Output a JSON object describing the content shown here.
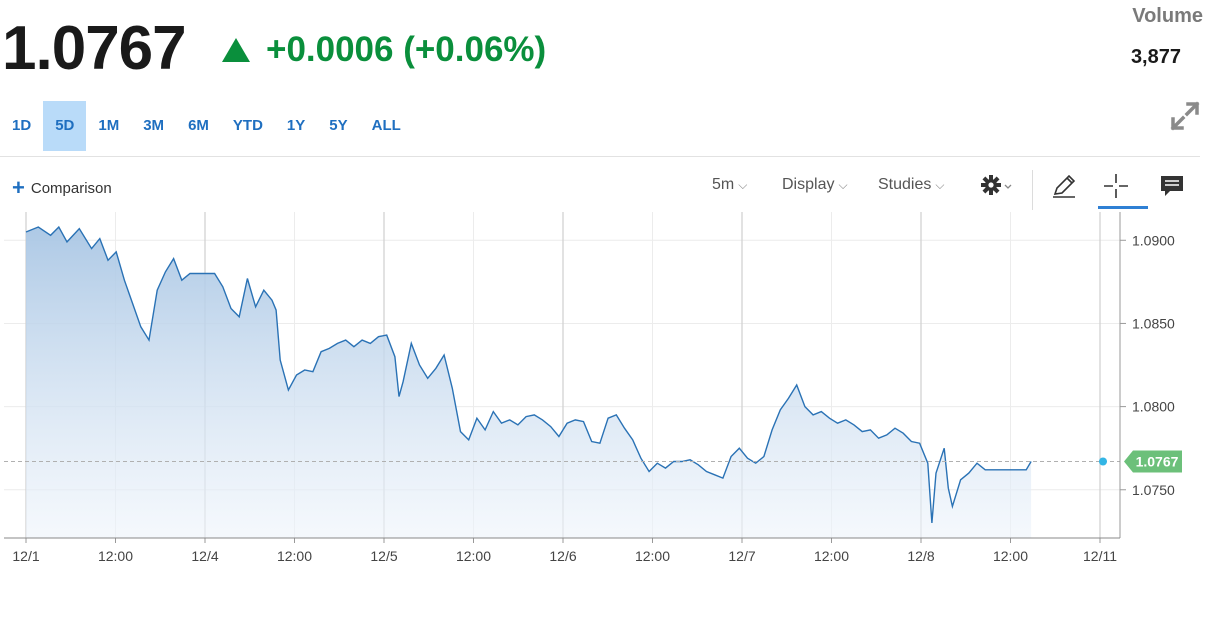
{
  "header": {
    "price": "1.0767",
    "change": "+0.0006 (+0.06%)",
    "volume_label": "Volume",
    "volume_value": "3,877"
  },
  "ranges": [
    "1D",
    "5D",
    "1M",
    "3M",
    "6M",
    "YTD",
    "1Y",
    "5Y",
    "ALL"
  ],
  "active_range": "5D",
  "toolbar": {
    "comparison_label": "Comparison",
    "interval_label": "5m",
    "display_label": "Display",
    "studies_label": "Studies"
  },
  "colors": {
    "accent": "#1f6fc0",
    "positive": "#0a8f3c",
    "line": "#2a72b5",
    "last_price_badge": "#6cc07a",
    "last_price_dot": "#33b5e5"
  },
  "chart_data": {
    "type": "area",
    "y_ticks": [
      "1.0900",
      "1.0850",
      "1.0800",
      "1.0750"
    ],
    "x_ticks": [
      "12/1",
      "12:00",
      "12/4",
      "12:00",
      "12/5",
      "12:00",
      "12/6",
      "12:00",
      "12/7",
      "12:00",
      "12/8",
      "12:00",
      "12/11"
    ],
    "ylim": [
      1.0721,
      1.0917
    ],
    "last_value": 1.0767,
    "last_label": "1.0767",
    "grid": true,
    "points": [
      [
        0,
        1.0905
      ],
      [
        1.5,
        1.0908
      ],
      [
        3,
        1.0903
      ],
      [
        4,
        1.0908
      ],
      [
        5,
        1.0899
      ],
      [
        6.5,
        1.0907
      ],
      [
        8,
        1.0895
      ],
      [
        9,
        1.0901
      ],
      [
        10,
        1.0888
      ],
      [
        11,
        1.0893
      ],
      [
        12,
        1.0876
      ],
      [
        13,
        1.0862
      ],
      [
        14,
        1.0848
      ],
      [
        15,
        1.084
      ],
      [
        16,
        1.087
      ],
      [
        17,
        1.0881
      ],
      [
        18,
        1.0889
      ],
      [
        19,
        1.0876
      ],
      [
        20,
        1.088
      ],
      [
        21,
        1.088
      ],
      [
        22,
        1.088
      ],
      [
        23,
        1.088
      ],
      [
        24,
        1.0872
      ],
      [
        25,
        1.0859
      ],
      [
        26,
        1.0854
      ],
      [
        27,
        1.0877
      ],
      [
        28,
        1.086
      ],
      [
        29,
        1.087
      ],
      [
        30,
        1.0864
      ],
      [
        30.5,
        1.0858
      ],
      [
        31,
        1.0828
      ],
      [
        32,
        1.081
      ],
      [
        33,
        1.0819
      ],
      [
        34,
        1.0822
      ],
      [
        35,
        1.0821
      ],
      [
        36,
        1.0833
      ],
      [
        37,
        1.0835
      ],
      [
        38,
        1.0838
      ],
      [
        39,
        1.084
      ],
      [
        40,
        1.0836
      ],
      [
        41,
        1.084
      ],
      [
        42,
        1.0838
      ],
      [
        43,
        1.0842
      ],
      [
        44,
        1.0843
      ],
      [
        45,
        1.083
      ],
      [
        45.5,
        1.0806
      ],
      [
        46,
        1.0815
      ],
      [
        47,
        1.0838
      ],
      [
        48,
        1.0825
      ],
      [
        49,
        1.0817
      ],
      [
        50,
        1.0823
      ],
      [
        51,
        1.0831
      ],
      [
        52,
        1.0811
      ],
      [
        53,
        1.0785
      ],
      [
        54,
        1.078
      ],
      [
        55,
        1.0793
      ],
      [
        56,
        1.0786
      ],
      [
        57,
        1.0797
      ],
      [
        58,
        1.079
      ],
      [
        59,
        1.0792
      ],
      [
        60,
        1.0789
      ],
      [
        61,
        1.0794
      ],
      [
        62,
        1.0795
      ],
      [
        63,
        1.0792
      ],
      [
        64,
        1.0788
      ],
      [
        65,
        1.0782
      ],
      [
        66,
        1.079
      ],
      [
        67,
        1.0792
      ],
      [
        68,
        1.0791
      ],
      [
        69,
        1.0779
      ],
      [
        70,
        1.0778
      ],
      [
        71,
        1.0793
      ],
      [
        72,
        1.0795
      ],
      [
        73,
        1.0787
      ],
      [
        74,
        1.078
      ],
      [
        75,
        1.0769
      ],
      [
        76,
        1.0761
      ],
      [
        77,
        1.0766
      ],
      [
        78,
        1.0763
      ],
      [
        79,
        1.0767
      ],
      [
        80,
        1.0767
      ],
      [
        81,
        1.0768
      ],
      [
        82,
        1.0765
      ],
      [
        83,
        1.0761
      ],
      [
        84,
        1.0759
      ],
      [
        85,
        1.0757
      ],
      [
        86,
        1.077
      ],
      [
        87,
        1.0775
      ],
      [
        88,
        1.0769
      ],
      [
        89,
        1.0766
      ],
      [
        90,
        1.077
      ],
      [
        91,
        1.0786
      ],
      [
        92,
        1.0798
      ],
      [
        93,
        1.0805
      ],
      [
        94,
        1.0813
      ],
      [
        95,
        1.08
      ],
      [
        96,
        1.0795
      ],
      [
        97,
        1.0797
      ],
      [
        98,
        1.0793
      ],
      [
        99,
        1.079
      ],
      [
        100,
        1.0792
      ],
      [
        101,
        1.0789
      ],
      [
        102,
        1.0785
      ],
      [
        103,
        1.0786
      ],
      [
        104,
        1.0781
      ],
      [
        105,
        1.0783
      ],
      [
        106,
        1.0787
      ],
      [
        107,
        1.0784
      ],
      [
        108,
        1.0779
      ],
      [
        109,
        1.0778
      ],
      [
        110,
        1.0766
      ],
      [
        110.5,
        1.073
      ],
      [
        111,
        1.076
      ],
      [
        112,
        1.0775
      ],
      [
        112.5,
        1.0751
      ],
      [
        113,
        1.074
      ],
      [
        114,
        1.0756
      ],
      [
        115,
        1.076
      ],
      [
        116,
        1.0766
      ],
      [
        117,
        1.0762
      ],
      [
        118,
        1.0762
      ],
      [
        119,
        1.0762
      ],
      [
        120,
        1.0762
      ],
      [
        121,
        1.0762
      ],
      [
        122,
        1.0762
      ],
      [
        122.6,
        1.0767
      ]
    ]
  }
}
